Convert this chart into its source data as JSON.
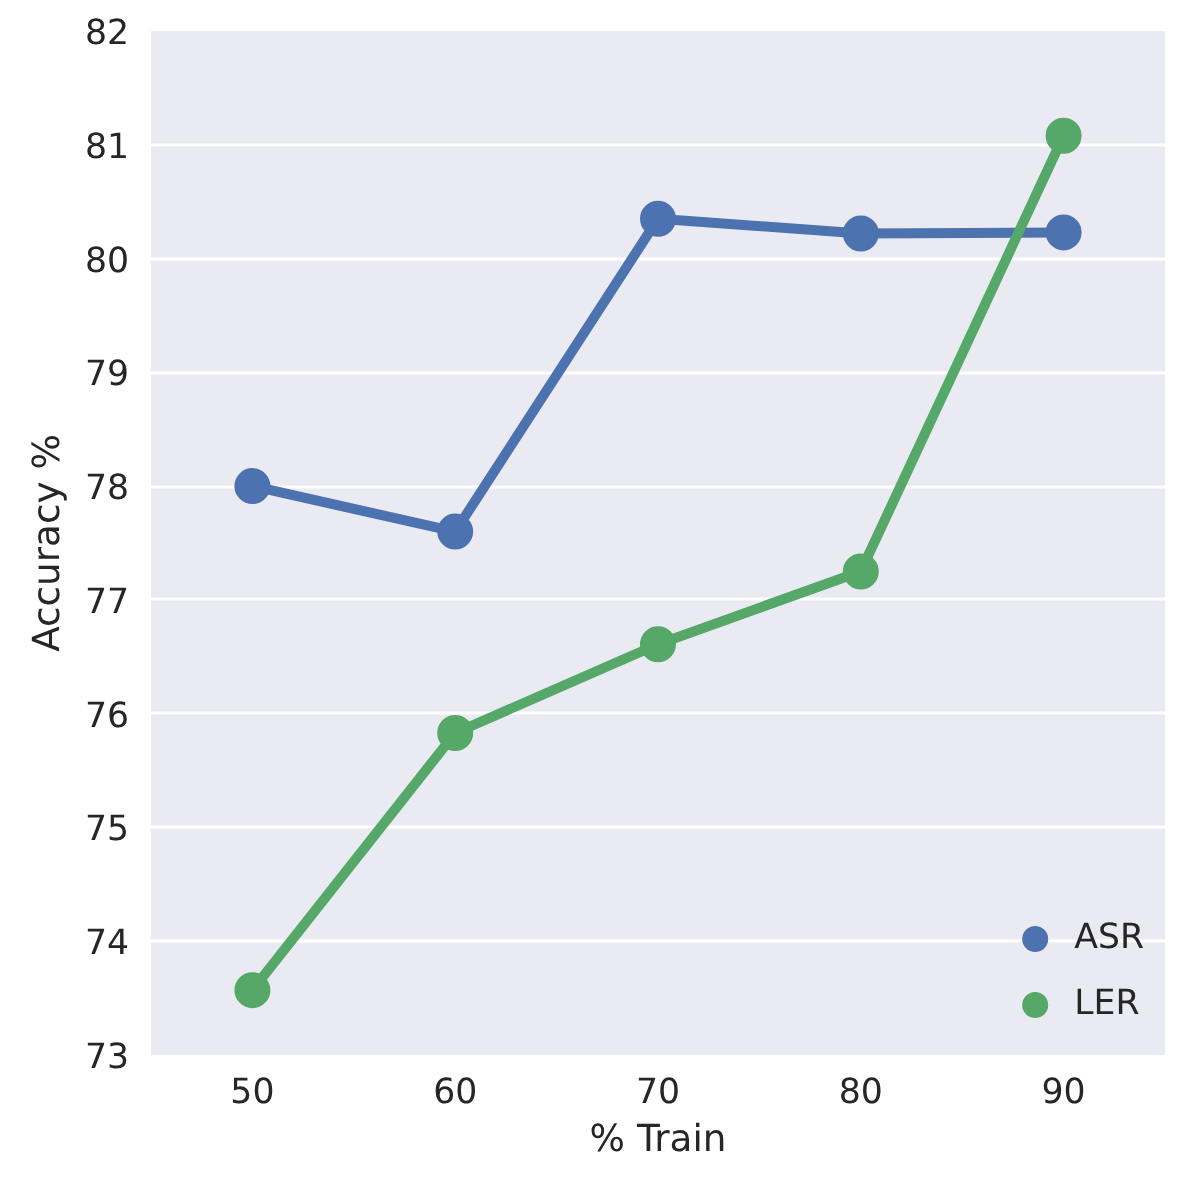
{
  "chart_data": {
    "type": "line",
    "xlabel": "% Train",
    "ylabel": "Accuracy %",
    "categories": [
      "50",
      "60",
      "70",
      "80",
      "90"
    ],
    "series": [
      {
        "name": "ASR",
        "color": "#4c72b0",
        "values": [
          78.0,
          77.6,
          80.35,
          80.22,
          80.23
        ]
      },
      {
        "name": "LER",
        "color": "#55a868",
        "values": [
          73.57,
          75.83,
          76.61,
          77.25,
          81.08
        ]
      }
    ],
    "ylim": [
      73,
      82
    ],
    "yticks": [
      73,
      74,
      75,
      76,
      77,
      78,
      79,
      80,
      81,
      82
    ],
    "grid": "y",
    "legend": "bottom right",
    "marker": "circle",
    "line_style": "solid"
  }
}
